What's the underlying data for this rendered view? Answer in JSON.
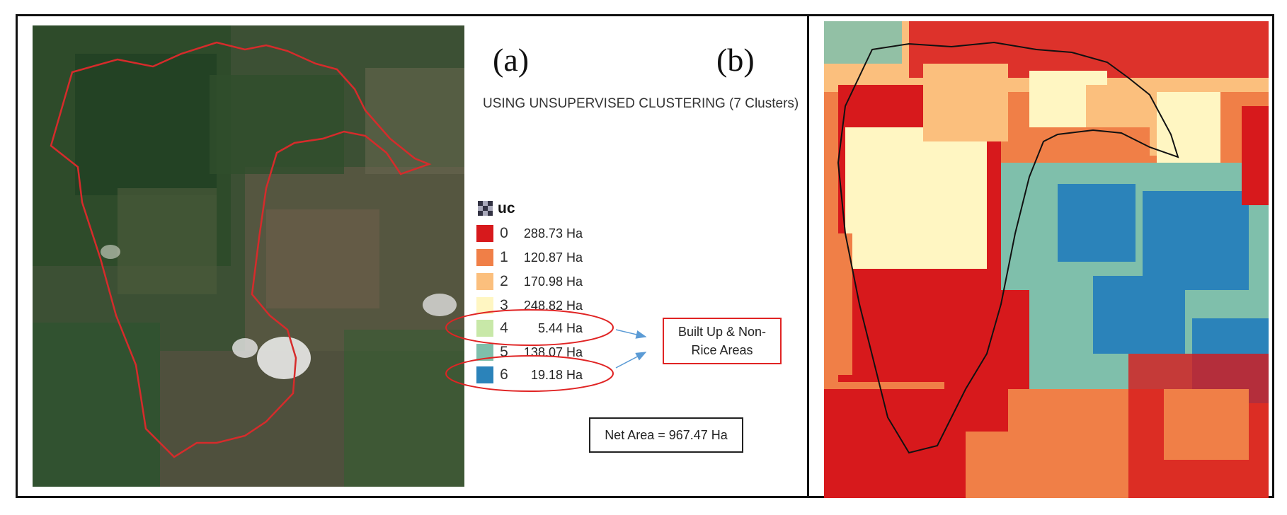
{
  "panels": {
    "a_label": "(a)",
    "b_label": "(b)"
  },
  "heading": "USING UNSUPERVISED CLUSTERING (7 Clusters)",
  "legend": {
    "title": "uc",
    "items": [
      {
        "cls": "0",
        "area": "288.73 Ha",
        "color": "#d7191c"
      },
      {
        "cls": "1",
        "area": "120.87 Ha",
        "color": "#f07f47"
      },
      {
        "cls": "2",
        "area": "170.98 Ha",
        "color": "#fbbf7d"
      },
      {
        "cls": "3",
        "area": "248.82 Ha",
        "color": "#fff6c2"
      },
      {
        "cls": "4",
        "area": "5.44 Ha",
        "color": "#c8e8a8"
      },
      {
        "cls": "5",
        "area": "138.07 Ha",
        "color": "#7fbfab"
      },
      {
        "cls": "6",
        "area": "19.18 Ha",
        "color": "#2b83ba"
      }
    ]
  },
  "note": {
    "line1": "Built Up & Non-",
    "line2": "Rice Areas"
  },
  "net_area": "Net Area = 967.47 Ha",
  "colors": {
    "boundary_a": "#d62b2b",
    "boundary_b": "#111111",
    "highlight": "#e02424",
    "arrow": "#5b9bd5"
  }
}
